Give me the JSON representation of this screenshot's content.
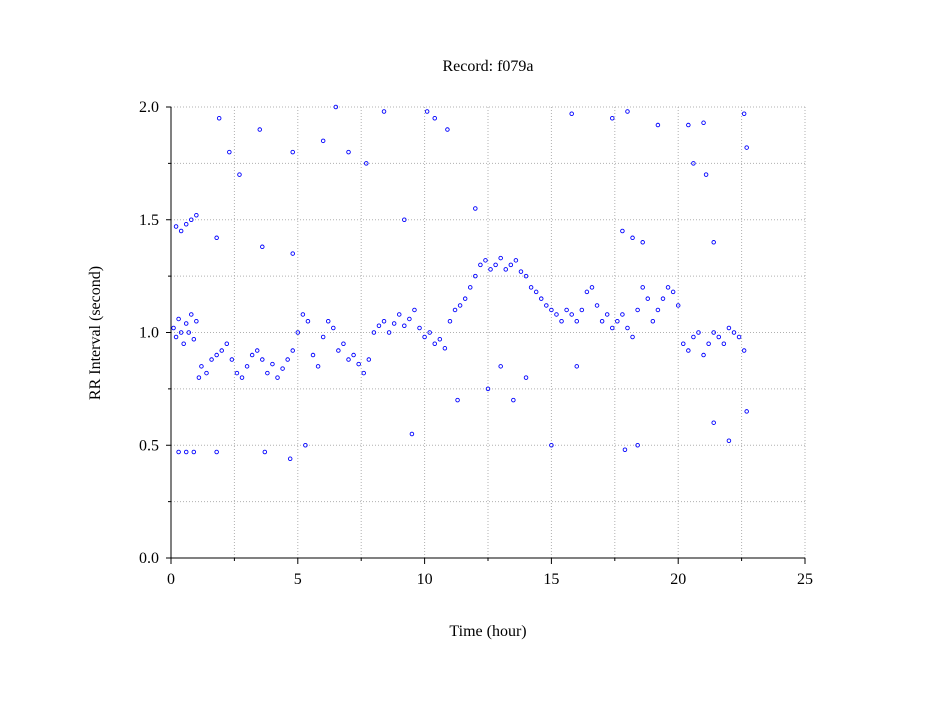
{
  "chart_data": {
    "type": "scatter",
    "title": "Record:  f079a",
    "xlabel": "Time (hour)",
    "ylabel": "RR Interval (second)",
    "xlim": [
      0,
      25
    ],
    "ylim": [
      0,
      2
    ],
    "xticks": [
      0,
      5,
      10,
      15,
      20,
      25
    ],
    "yticks": [
      {
        "value": 0,
        "label": "0.0"
      },
      0.5,
      {
        "value": 1,
        "label": "1.0"
      },
      1.5,
      {
        "value": 2,
        "label": "2.0"
      }
    ],
    "x_minor_ticks": [
      2.5,
      7.5,
      12.5,
      17.5,
      22.5
    ],
    "y_minor_ticks": [
      0.25,
      0.75,
      1.25,
      1.75
    ],
    "grid": true,
    "series": [
      {
        "color": "#0000ff",
        "x": [
          0.1,
          0.2,
          0.3,
          0.4,
          0.5,
          0.6,
          0.7,
          0.8,
          0.9,
          1.0,
          1.1,
          1.2,
          1.4,
          1.6,
          1.8,
          2.0,
          2.2,
          2.4,
          2.6,
          2.8,
          3.0,
          3.2,
          3.4,
          3.6,
          3.8,
          4.0,
          4.2,
          4.4,
          4.6,
          4.8,
          5.0,
          5.2,
          5.4,
          5.6,
          5.8,
          6.0,
          6.2,
          6.4,
          6.6,
          6.8,
          7.0,
          7.2,
          7.4,
          7.6,
          7.8,
          8.0,
          8.2,
          8.4,
          8.6,
          8.8,
          9.0,
          9.2,
          9.4,
          9.6,
          9.8,
          10.0,
          10.2,
          10.4,
          10.6,
          10.8,
          11.0,
          11.2,
          11.4,
          11.6,
          11.8,
          12.0,
          12.2,
          12.4,
          12.6,
          12.8,
          13.0,
          13.2,
          13.4,
          13.6,
          13.8,
          14.0,
          14.2,
          14.4,
          14.6,
          14.8,
          15.0,
          15.2,
          15.4,
          15.6,
          15.8,
          16.0,
          16.2,
          16.4,
          16.6,
          16.8,
          17.0,
          17.2,
          17.4,
          17.6,
          17.8,
          18.0,
          18.2,
          18.4,
          18.6,
          18.8,
          19.0,
          19.2,
          19.4,
          19.6,
          19.8,
          20.0,
          20.2,
          20.4,
          20.6,
          20.8,
          21.0,
          21.2,
          21.4,
          21.6,
          21.8,
          22.0,
          22.2,
          22.4,
          22.6,
          0.2,
          0.4,
          0.6,
          0.8,
          1.0,
          0.3,
          0.6,
          0.9,
          1.8,
          1.8,
          1.9,
          2.3,
          2.7,
          3.5,
          3.6,
          3.7,
          4.7,
          4.8,
          4.8,
          5.3,
          6.0,
          6.5,
          7.0,
          7.7,
          8.4,
          9.2,
          9.5,
          10.1,
          10.4,
          10.9,
          11.3,
          12.0,
          12.5,
          13.0,
          13.5,
          14.0,
          15.0,
          15.8,
          16.0,
          17.4,
          17.8,
          17.9,
          18.0,
          18.2,
          18.4,
          18.6,
          19.2,
          20.4,
          20.6,
          21.0,
          21.1,
          21.4,
          21.4,
          22.0,
          22.6,
          22.7,
          22.7
        ],
        "y": [
          1.02,
          0.98,
          1.06,
          1.0,
          0.95,
          1.04,
          1.0,
          1.08,
          0.97,
          1.05,
          0.8,
          0.85,
          0.82,
          0.88,
          0.9,
          0.92,
          0.95,
          0.88,
          0.82,
          0.8,
          0.85,
          0.9,
          0.92,
          0.88,
          0.82,
          0.86,
          0.8,
          0.84,
          0.88,
          0.92,
          1.0,
          1.08,
          1.05,
          0.9,
          0.85,
          0.98,
          1.05,
          1.02,
          0.92,
          0.95,
          0.88,
          0.9,
          0.86,
          0.82,
          0.88,
          1.0,
          1.03,
          1.05,
          1.0,
          1.04,
          1.08,
          1.03,
          1.06,
          1.1,
          1.02,
          0.98,
          1.0,
          0.95,
          0.97,
          0.93,
          1.05,
          1.1,
          1.12,
          1.15,
          1.2,
          1.25,
          1.3,
          1.32,
          1.28,
          1.3,
          1.33,
          1.28,
          1.3,
          1.32,
          1.27,
          1.25,
          1.2,
          1.18,
          1.15,
          1.12,
          1.1,
          1.08,
          1.05,
          1.1,
          1.08,
          1.05,
          1.1,
          1.18,
          1.2,
          1.12,
          1.05,
          1.08,
          1.02,
          1.05,
          1.08,
          1.02,
          0.98,
          1.1,
          1.2,
          1.15,
          1.05,
          1.1,
          1.15,
          1.2,
          1.18,
          1.12,
          0.95,
          0.92,
          0.98,
          1.0,
          0.9,
          0.95,
          1.0,
          0.98,
          0.95,
          1.02,
          1.0,
          0.98,
          0.92,
          1.47,
          1.45,
          1.48,
          1.5,
          1.52,
          0.47,
          0.47,
          0.47,
          0.47,
          1.42,
          1.95,
          1.8,
          1.7,
          1.9,
          1.38,
          0.47,
          0.44,
          1.35,
          1.8,
          0.5,
          1.85,
          2.0,
          1.8,
          1.75,
          1.98,
          1.5,
          0.55,
          1.98,
          1.95,
          1.9,
          0.7,
          1.55,
          0.75,
          0.85,
          0.7,
          0.8,
          0.5,
          1.97,
          0.85,
          1.95,
          1.45,
          0.48,
          1.98,
          1.42,
          0.5,
          1.4,
          1.92,
          1.92,
          1.75,
          1.93,
          1.7,
          1.4,
          0.6,
          0.52,
          1.97,
          1.82,
          0.65
        ]
      }
    ]
  }
}
